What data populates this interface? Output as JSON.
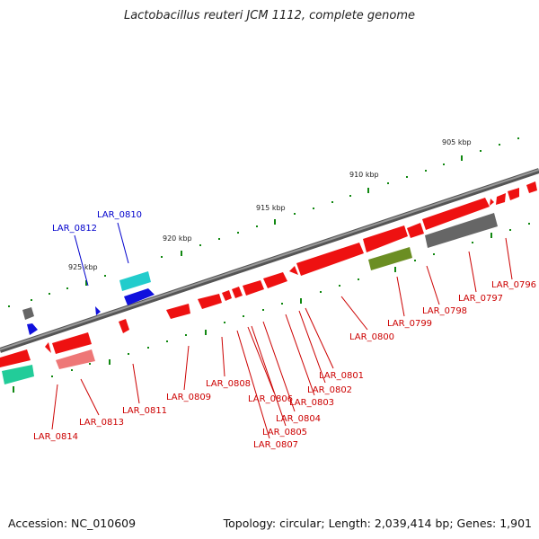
{
  "title": "Lactobacillus reuteri JCM 1112, complete genome",
  "footer": {
    "accession": "Accession: NC_010609",
    "info": "Topology: circular; Length: 2,039,414 bp; Genes: 1,901"
  },
  "scale_labels": [
    "905 kbp",
    "910 kbp",
    "915 kbp",
    "920 kbp",
    "925 kbp"
  ],
  "gene_labels": [
    "LAR_0796",
    "LAR_0797",
    "LAR_0798",
    "LAR_0799",
    "LAR_0800",
    "LAR_0801",
    "LAR_0802",
    "LAR_0803",
    "LAR_0804",
    "LAR_0805",
    "LAR_0806",
    "LAR_0807",
    "LAR_0808",
    "LAR_0809",
    "LAR_0810",
    "LAR_0811",
    "LAR_0812",
    "LAR_0813",
    "LAR_0814"
  ],
  "colors": {
    "cds": "#ee1111",
    "blue_gene": "#1111dd",
    "cyan_gene": "#22cccc",
    "green_gene": "#6b8e23",
    "gray_gene": "#666666",
    "pink_gene": "#ee7777",
    "teal_gene": "#22cc99",
    "backbone": "#888888",
    "tick": "#118811",
    "label_red": "#cc0000",
    "label_blue": "#0000cc"
  }
}
